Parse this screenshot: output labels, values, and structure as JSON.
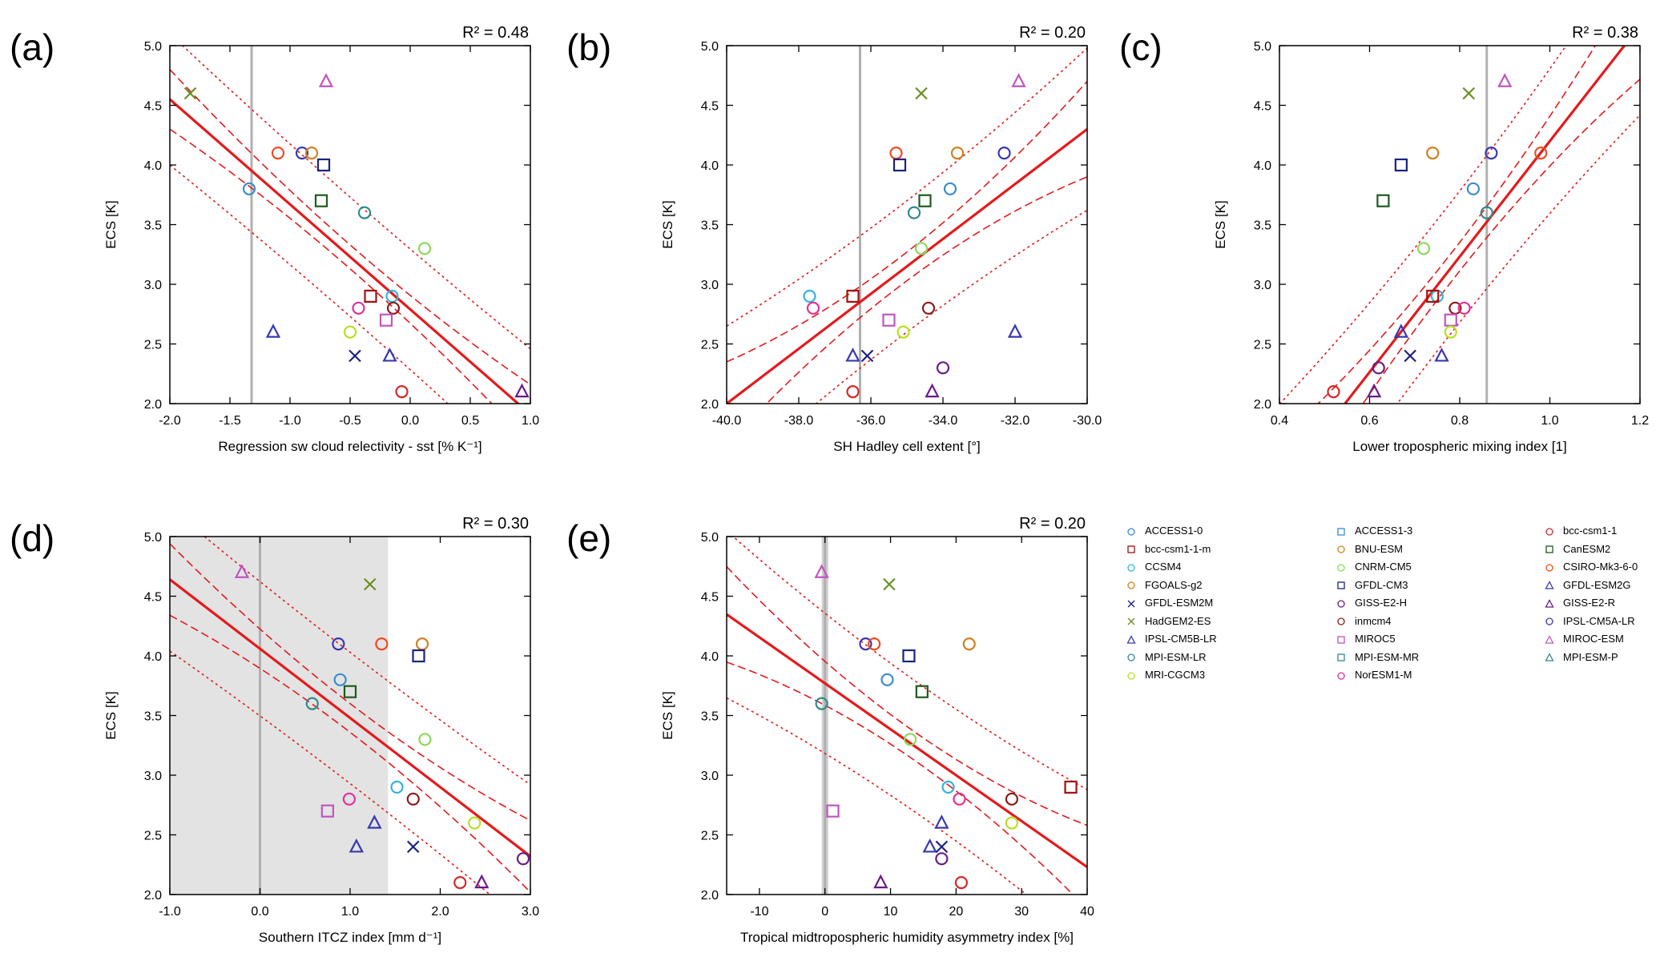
{
  "colors": {
    "fit": "#e41a1c",
    "obs": "#b0b0b0",
    "shade": "#e3e3e3"
  },
  "legend": [
    {
      "name": "ACCESS1-0",
      "color": "#3a8ad1",
      "marker": "circle"
    },
    {
      "name": "ACCESS1-3",
      "color": "#3a8ad1",
      "marker": "square"
    },
    {
      "name": "bcc-csm1-1",
      "color": "#d62728",
      "marker": "circle"
    },
    {
      "name": "bcc-csm1-1-m",
      "color": "#a01010",
      "marker": "square"
    },
    {
      "name": "BNU-ESM",
      "color": "#d08020",
      "marker": "circle"
    },
    {
      "name": "CanESM2",
      "color": "#1e5a1e",
      "marker": "square"
    },
    {
      "name": "CCSM4",
      "color": "#33b3e0",
      "marker": "circle"
    },
    {
      "name": "CNRM-CM5",
      "color": "#8ad85a",
      "marker": "circle"
    },
    {
      "name": "CSIRO-Mk3-6-0",
      "color": "#f04a20",
      "marker": "circle"
    },
    {
      "name": "FGOALS-g2",
      "color": "#d08020",
      "marker": "circle"
    },
    {
      "name": "GFDL-CM3",
      "color": "#1a237e",
      "marker": "square"
    },
    {
      "name": "GFDL-ESM2G",
      "color": "#3838b0",
      "marker": "triangle"
    },
    {
      "name": "GFDL-ESM2M",
      "color": "#1a237e",
      "marker": "cross"
    },
    {
      "name": "GISS-E2-H",
      "color": "#6a1a8a",
      "marker": "circle"
    },
    {
      "name": "GISS-E2-R",
      "color": "#6a1a8a",
      "marker": "triangle"
    },
    {
      "name": "HadGEM2-ES",
      "color": "#6b8e23",
      "marker": "cross"
    },
    {
      "name": "inmcm4",
      "color": "#8b1a1a",
      "marker": "circle"
    },
    {
      "name": "IPSL-CM5A-LR",
      "color": "#3838b0",
      "marker": "circle"
    },
    {
      "name": "IPSL-CM5B-LR",
      "color": "#3838b0",
      "marker": "triangle"
    },
    {
      "name": "MIROC5",
      "color": "#c055c0",
      "marker": "square"
    },
    {
      "name": "MIROC-ESM",
      "color": "#c055c0",
      "marker": "triangle"
    },
    {
      "name": "MPI-ESM-LR",
      "color": "#2e8b8b",
      "marker": "circle"
    },
    {
      "name": "MPI-ESM-MR",
      "color": "#2e8b8b",
      "marker": "square"
    },
    {
      "name": "MPI-ESM-P",
      "color": "#2e8b8b",
      "marker": "triangle"
    },
    {
      "name": "MRI-CGCM3",
      "color": "#b8e020",
      "marker": "circle"
    },
    {
      "name": "NorESM1-M",
      "color": "#e0309a",
      "marker": "circle"
    }
  ],
  "chart_data": [
    {
      "type": "scatter",
      "label": "(a)",
      "r2": "R² = 0.48",
      "xlabel": "Regression sw cloud relectivity - sst [% K⁻¹]",
      "ylabel": "ECS [K]",
      "xlim": [
        -2.0,
        1.0
      ],
      "ylim": [
        2.0,
        5.0
      ],
      "xticks": [
        -2.0,
        -1.5,
        -1.0,
        -0.5,
        0.0,
        0.5,
        1.0
      ],
      "xticklabels": [
        "-2.0",
        "-1.5",
        "-1.0",
        "-0.5",
        "0.0",
        "0.5",
        "1.0"
      ],
      "yticks": [
        2.0,
        2.5,
        3.0,
        3.5,
        4.0,
        4.5,
        5.0
      ],
      "yticklabels": [
        "2.0",
        "2.5",
        "3.0",
        "3.5",
        "4.0",
        "4.5",
        "5.0"
      ],
      "obs": -1.32,
      "fit": {
        "slope": -0.88,
        "intercept": 2.79,
        "conf": [
          0.25,
          0.1,
          0.25
        ],
        "pred": [
          0.55,
          0.5,
          0.55
        ]
      },
      "points": [
        {
          "model": "HadGEM2-ES",
          "x": -1.83,
          "y": 4.6
        },
        {
          "model": "MIROC-ESM",
          "x": -0.7,
          "y": 4.7
        },
        {
          "model": "CSIRO-Mk3-6-0",
          "x": -1.1,
          "y": 4.1
        },
        {
          "model": "IPSL-CM5A-LR",
          "x": -0.9,
          "y": 4.1
        },
        {
          "model": "FGOALS-g2",
          "x": -0.82,
          "y": 4.1
        },
        {
          "model": "GFDL-CM3",
          "x": -0.72,
          "y": 4.0
        },
        {
          "model": "ACCESS1-0",
          "x": -1.34,
          "y": 3.8
        },
        {
          "model": "CanESM2",
          "x": -0.74,
          "y": 3.7
        },
        {
          "model": "MPI-ESM-LR",
          "x": -0.38,
          "y": 3.6
        },
        {
          "model": "CNRM-CM5",
          "x": 0.12,
          "y": 3.3
        },
        {
          "model": "bcc-csm1-1-m",
          "x": -0.33,
          "y": 2.9
        },
        {
          "model": "CCSM4",
          "x": -0.15,
          "y": 2.9
        },
        {
          "model": "NorESM1-M",
          "x": -0.43,
          "y": 2.8
        },
        {
          "model": "inmcm4",
          "x": -0.14,
          "y": 2.8
        },
        {
          "model": "MIROC5",
          "x": -0.2,
          "y": 2.7
        },
        {
          "model": "IPSL-CM5B-LR",
          "x": -1.14,
          "y": 2.6
        },
        {
          "model": "MRI-CGCM3",
          "x": -0.5,
          "y": 2.6
        },
        {
          "model": "GFDL-ESM2M",
          "x": -0.46,
          "y": 2.4
        },
        {
          "model": "GFDL-ESM2G",
          "x": -0.17,
          "y": 2.4
        },
        {
          "model": "bcc-csm1-1",
          "x": -0.07,
          "y": 2.1
        },
        {
          "model": "GISS-E2-R",
          "x": 0.93,
          "y": 2.1
        }
      ]
    },
    {
      "type": "scatter",
      "label": "(b)",
      "r2": "R² = 0.20",
      "xlabel": "SH Hadley cell extent [°]",
      "ylabel": "ECS [K]",
      "xlim": [
        -40.0,
        -30.0
      ],
      "ylim": [
        2.0,
        5.0
      ],
      "xticks": [
        -40,
        -38,
        -36,
        -34,
        -32,
        -30
      ],
      "xticklabels": [
        "-40.0",
        "-38.0",
        "-36.0",
        "-34.0",
        "-32.0",
        "-30.0"
      ],
      "yticks": [
        2.0,
        2.5,
        3.0,
        3.5,
        4.0,
        4.5,
        5.0
      ],
      "yticklabels": [
        "2.0",
        "2.5",
        "3.0",
        "3.5",
        "4.0",
        "4.5",
        "5.0"
      ],
      "obs": -36.3,
      "fit": {
        "slope": 0.23,
        "intercept": 11.2,
        "conf": [
          0.35,
          0.12,
          0.4
        ],
        "pred": [
          0.65,
          0.55,
          0.68
        ]
      },
      "points": [
        {
          "model": "HadGEM2-ES",
          "x": -34.6,
          "y": 4.6
        },
        {
          "model": "MIROC-ESM",
          "x": -31.9,
          "y": 4.7
        },
        {
          "model": "CSIRO-Mk3-6-0",
          "x": -35.3,
          "y": 4.1
        },
        {
          "model": "FGOALS-g2",
          "x": -33.6,
          "y": 4.1
        },
        {
          "model": "IPSL-CM5A-LR",
          "x": -32.3,
          "y": 4.1
        },
        {
          "model": "GFDL-CM3",
          "x": -35.2,
          "y": 4.0
        },
        {
          "model": "ACCESS1-0",
          "x": -33.8,
          "y": 3.8
        },
        {
          "model": "CanESM2",
          "x": -34.5,
          "y": 3.7
        },
        {
          "model": "MPI-ESM-LR",
          "x": -34.8,
          "y": 3.6
        },
        {
          "model": "CNRM-CM5",
          "x": -34.6,
          "y": 3.3
        },
        {
          "model": "CCSM4",
          "x": -37.7,
          "y": 2.9
        },
        {
          "model": "bcc-csm1-1-m",
          "x": -36.5,
          "y": 2.9
        },
        {
          "model": "NorESM1-M",
          "x": -37.6,
          "y": 2.8
        },
        {
          "model": "inmcm4",
          "x": -34.4,
          "y": 2.8
        },
        {
          "model": "MIROC5",
          "x": -35.5,
          "y": 2.7
        },
        {
          "model": "MRI-CGCM3",
          "x": -35.1,
          "y": 2.6
        },
        {
          "model": "IPSL-CM5B-LR",
          "x": -32.0,
          "y": 2.6
        },
        {
          "model": "GFDL-ESM2G",
          "x": -36.5,
          "y": 2.4
        },
        {
          "model": "GFDL-ESM2M",
          "x": -36.1,
          "y": 2.4
        },
        {
          "model": "GISS-E2-H",
          "x": -34.0,
          "y": 2.3
        },
        {
          "model": "bcc-csm1-1",
          "x": -36.5,
          "y": 2.1
        },
        {
          "model": "GISS-E2-R",
          "x": -34.3,
          "y": 2.1
        }
      ]
    },
    {
      "type": "scatter",
      "label": "(c)",
      "r2": "R² = 0.38",
      "xlabel": "Lower tropospheric mixing index [1]",
      "ylabel": "ECS [K]",
      "xlim": [
        0.4,
        1.2
      ],
      "ylim": [
        2.0,
        5.0
      ],
      "xticks": [
        0.4,
        0.6,
        0.8,
        1.0,
        1.2
      ],
      "xticklabels": [
        "0.4",
        "0.6",
        "0.8",
        "1.0",
        "1.2"
      ],
      "yticks": [
        2.0,
        2.5,
        3.0,
        3.5,
        4.0,
        4.5,
        5.0
      ],
      "yticklabels": [
        "2.0",
        "2.5",
        "3.0",
        "3.5",
        "4.0",
        "4.5",
        "5.0"
      ],
      "obs": 0.86,
      "fit": {
        "slope": 4.84,
        "intercept": -0.64,
        "conf": [
          0.4,
          0.12,
          0.45
        ],
        "pred": [
          0.7,
          0.55,
          0.75
        ]
      },
      "points": [
        {
          "model": "HadGEM2-ES",
          "x": 0.82,
          "y": 4.6
        },
        {
          "model": "MIROC-ESM",
          "x": 0.9,
          "y": 4.7
        },
        {
          "model": "BNU-ESM",
          "x": 0.74,
          "y": 4.1
        },
        {
          "model": "IPSL-CM5A-LR",
          "x": 0.87,
          "y": 4.1
        },
        {
          "model": "CSIRO-Mk3-6-0",
          "x": 0.98,
          "y": 4.1
        },
        {
          "model": "GFDL-CM3",
          "x": 0.67,
          "y": 4.0
        },
        {
          "model": "ACCESS1-0",
          "x": 0.83,
          "y": 3.8
        },
        {
          "model": "CanESM2",
          "x": 0.63,
          "y": 3.7
        },
        {
          "model": "MPI-ESM-LR",
          "x": 0.86,
          "y": 3.6
        },
        {
          "model": "CNRM-CM5",
          "x": 0.72,
          "y": 3.3
        },
        {
          "model": "CCSM4",
          "x": 0.75,
          "y": 2.9
        },
        {
          "model": "bcc-csm1-1-m",
          "x": 0.74,
          "y": 2.9
        },
        {
          "model": "inmcm4",
          "x": 0.79,
          "y": 2.8
        },
        {
          "model": "NorESM1-M",
          "x": 0.81,
          "y": 2.8
        },
        {
          "model": "MIROC5",
          "x": 0.78,
          "y": 2.7
        },
        {
          "model": "MRI-CGCM3",
          "x": 0.78,
          "y": 2.6
        },
        {
          "model": "IPSL-CM5B-LR",
          "x": 0.67,
          "y": 2.6
        },
        {
          "model": "GFDL-ESM2M",
          "x": 0.69,
          "y": 2.4
        },
        {
          "model": "GFDL-ESM2G",
          "x": 0.76,
          "y": 2.4
        },
        {
          "model": "GISS-E2-H",
          "x": 0.62,
          "y": 2.3
        },
        {
          "model": "bcc-csm1-1",
          "x": 0.52,
          "y": 2.1
        },
        {
          "model": "GISS-E2-R",
          "x": 0.61,
          "y": 2.1
        }
      ]
    },
    {
      "type": "scatter",
      "label": "(d)",
      "r2": "R² = 0.30",
      "xlabel": "Southern ITCZ index [mm d⁻¹]",
      "ylabel": "ECS [K]",
      "xlim": [
        -1.0,
        3.0
      ],
      "ylim": [
        2.0,
        5.0
      ],
      "xticks": [
        -1.0,
        0.0,
        1.0,
        2.0,
        3.0
      ],
      "xticklabels": [
        "-1.0",
        "0.0",
        "1.0",
        "2.0",
        "3.0"
      ],
      "yticks": [
        2.0,
        2.5,
        3.0,
        3.5,
        4.0,
        4.5,
        5.0
      ],
      "yticklabels": [
        "2.0",
        "2.5",
        "3.0",
        "3.5",
        "4.0",
        "4.5",
        "5.0"
      ],
      "obs": 0.0,
      "shade": [
        -1.0,
        1.42
      ],
      "fit": {
        "slope": -0.58,
        "intercept": 4.06,
        "conf": [
          0.3,
          0.12,
          0.3
        ],
        "pred": [
          0.6,
          0.55,
          0.6
        ]
      },
      "points": [
        {
          "model": "MIROC-ESM",
          "x": -0.2,
          "y": 4.7
        },
        {
          "model": "HadGEM2-ES",
          "x": 1.22,
          "y": 4.6
        },
        {
          "model": "IPSL-CM5A-LR",
          "x": 0.87,
          "y": 4.1
        },
        {
          "model": "CSIRO-Mk3-6-0",
          "x": 1.35,
          "y": 4.1
        },
        {
          "model": "FGOALS-g2",
          "x": 1.8,
          "y": 4.1
        },
        {
          "model": "GFDL-CM3",
          "x": 1.76,
          "y": 4.0
        },
        {
          "model": "ACCESS1-0",
          "x": 0.89,
          "y": 3.8
        },
        {
          "model": "CanESM2",
          "x": 1.0,
          "y": 3.7
        },
        {
          "model": "MPI-ESM-LR",
          "x": 0.58,
          "y": 3.6
        },
        {
          "model": "CNRM-CM5",
          "x": 1.83,
          "y": 3.3
        },
        {
          "model": "CCSM4",
          "x": 1.52,
          "y": 2.9
        },
        {
          "model": "NorESM1-M",
          "x": 0.99,
          "y": 2.8
        },
        {
          "model": "inmcm4",
          "x": 1.7,
          "y": 2.8
        },
        {
          "model": "MIROC5",
          "x": 0.75,
          "y": 2.7
        },
        {
          "model": "IPSL-CM5B-LR",
          "x": 1.27,
          "y": 2.6
        },
        {
          "model": "MRI-CGCM3",
          "x": 2.38,
          "y": 2.6
        },
        {
          "model": "GFDL-ESM2G",
          "x": 1.07,
          "y": 2.4
        },
        {
          "model": "GFDL-ESM2M",
          "x": 1.7,
          "y": 2.4
        },
        {
          "model": "GISS-E2-H",
          "x": 2.92,
          "y": 2.3
        },
        {
          "model": "bcc-csm1-1",
          "x": 2.22,
          "y": 2.1
        },
        {
          "model": "GISS-E2-R",
          "x": 2.46,
          "y": 2.1
        }
      ]
    },
    {
      "type": "scatter",
      "label": "(e)",
      "r2": "R² = 0.20",
      "xlabel": "Tropical midtropospheric humidity asymmetry index [%]",
      "ylabel": "ECS [K]",
      "xlim": [
        -15,
        40
      ],
      "ylim": [
        2.0,
        5.0
      ],
      "xticks": [
        -10,
        0,
        10,
        20,
        30,
        40
      ],
      "xticklabels": [
        "-10",
        "0",
        "10",
        "20",
        "30",
        "40"
      ],
      "yticks": [
        2.0,
        2.5,
        3.0,
        3.5,
        4.0,
        4.5,
        5.0
      ],
      "yticklabels": [
        "2.0",
        "2.5",
        "3.0",
        "3.5",
        "4.0",
        "4.5",
        "5.0"
      ],
      "obs": 0.0,
      "obsband": [
        -0.5,
        0.5
      ],
      "fit": {
        "slope": -0.0385,
        "intercept": 3.77,
        "conf": [
          0.4,
          0.12,
          0.35
        ],
        "pred": [
          0.7,
          0.55,
          0.65
        ]
      },
      "points": [
        {
          "model": "MIROC-ESM",
          "x": -0.5,
          "y": 4.7
        },
        {
          "model": "HadGEM2-ES",
          "x": 9.8,
          "y": 4.6
        },
        {
          "model": "IPSL-CM5A-LR",
          "x": 6.2,
          "y": 4.1
        },
        {
          "model": "CSIRO-Mk3-6-0",
          "x": 7.5,
          "y": 4.1
        },
        {
          "model": "FGOALS-g2",
          "x": 22.0,
          "y": 4.1
        },
        {
          "model": "GFDL-CM3",
          "x": 12.8,
          "y": 4.0
        },
        {
          "model": "ACCESS1-0",
          "x": 9.5,
          "y": 3.8
        },
        {
          "model": "CanESM2",
          "x": 14.8,
          "y": 3.7
        },
        {
          "model": "MPI-ESM-LR",
          "x": -0.5,
          "y": 3.6
        },
        {
          "model": "CNRM-CM5",
          "x": 13.0,
          "y": 3.3
        },
        {
          "model": "bcc-csm1-1-m",
          "x": 37.5,
          "y": 2.9
        },
        {
          "model": "CCSM4",
          "x": 18.8,
          "y": 2.9
        },
        {
          "model": "inmcm4",
          "x": 28.5,
          "y": 2.8
        },
        {
          "model": "NorESM1-M",
          "x": 20.5,
          "y": 2.8
        },
        {
          "model": "MIROC5",
          "x": 1.2,
          "y": 2.7
        },
        {
          "model": "MRI-CGCM3",
          "x": 28.5,
          "y": 2.6
        },
        {
          "model": "IPSL-CM5B-LR",
          "x": 17.8,
          "y": 2.6
        },
        {
          "model": "GFDL-ESM2G",
          "x": 16.0,
          "y": 2.4
        },
        {
          "model": "GFDL-ESM2M",
          "x": 17.8,
          "y": 2.4
        },
        {
          "model": "GISS-E2-H",
          "x": 17.8,
          "y": 2.3
        },
        {
          "model": "bcc-csm1-1",
          "x": 20.8,
          "y": 2.1
        },
        {
          "model": "GISS-E2-R",
          "x": 8.5,
          "y": 2.1
        }
      ]
    }
  ]
}
